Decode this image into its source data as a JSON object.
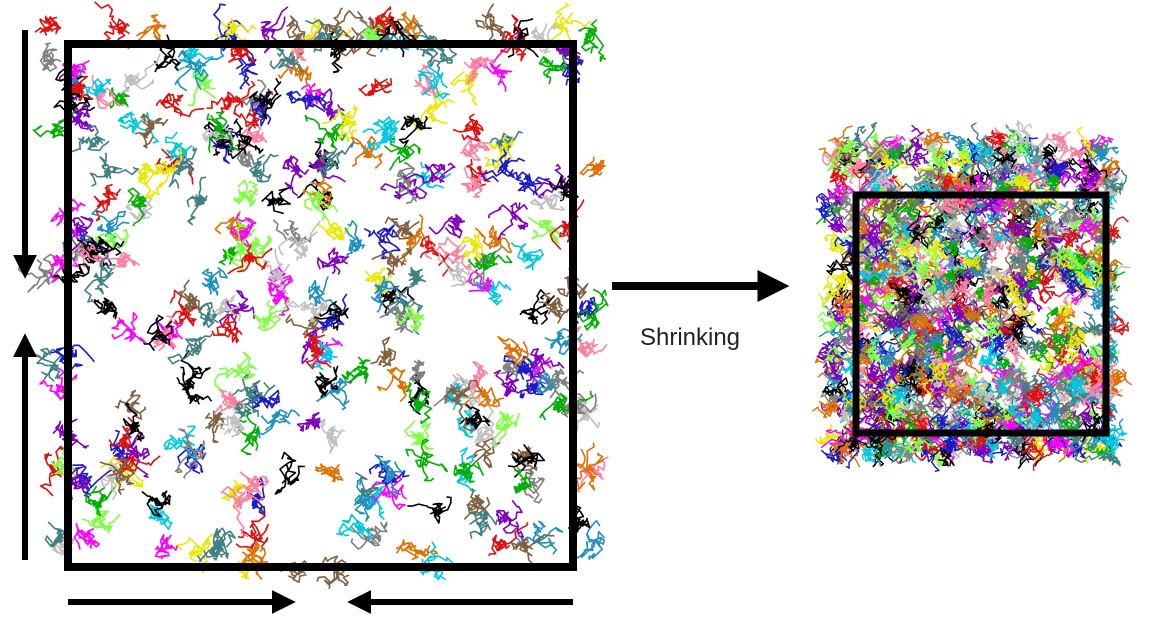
{
  "label": "Shrinking"
}
